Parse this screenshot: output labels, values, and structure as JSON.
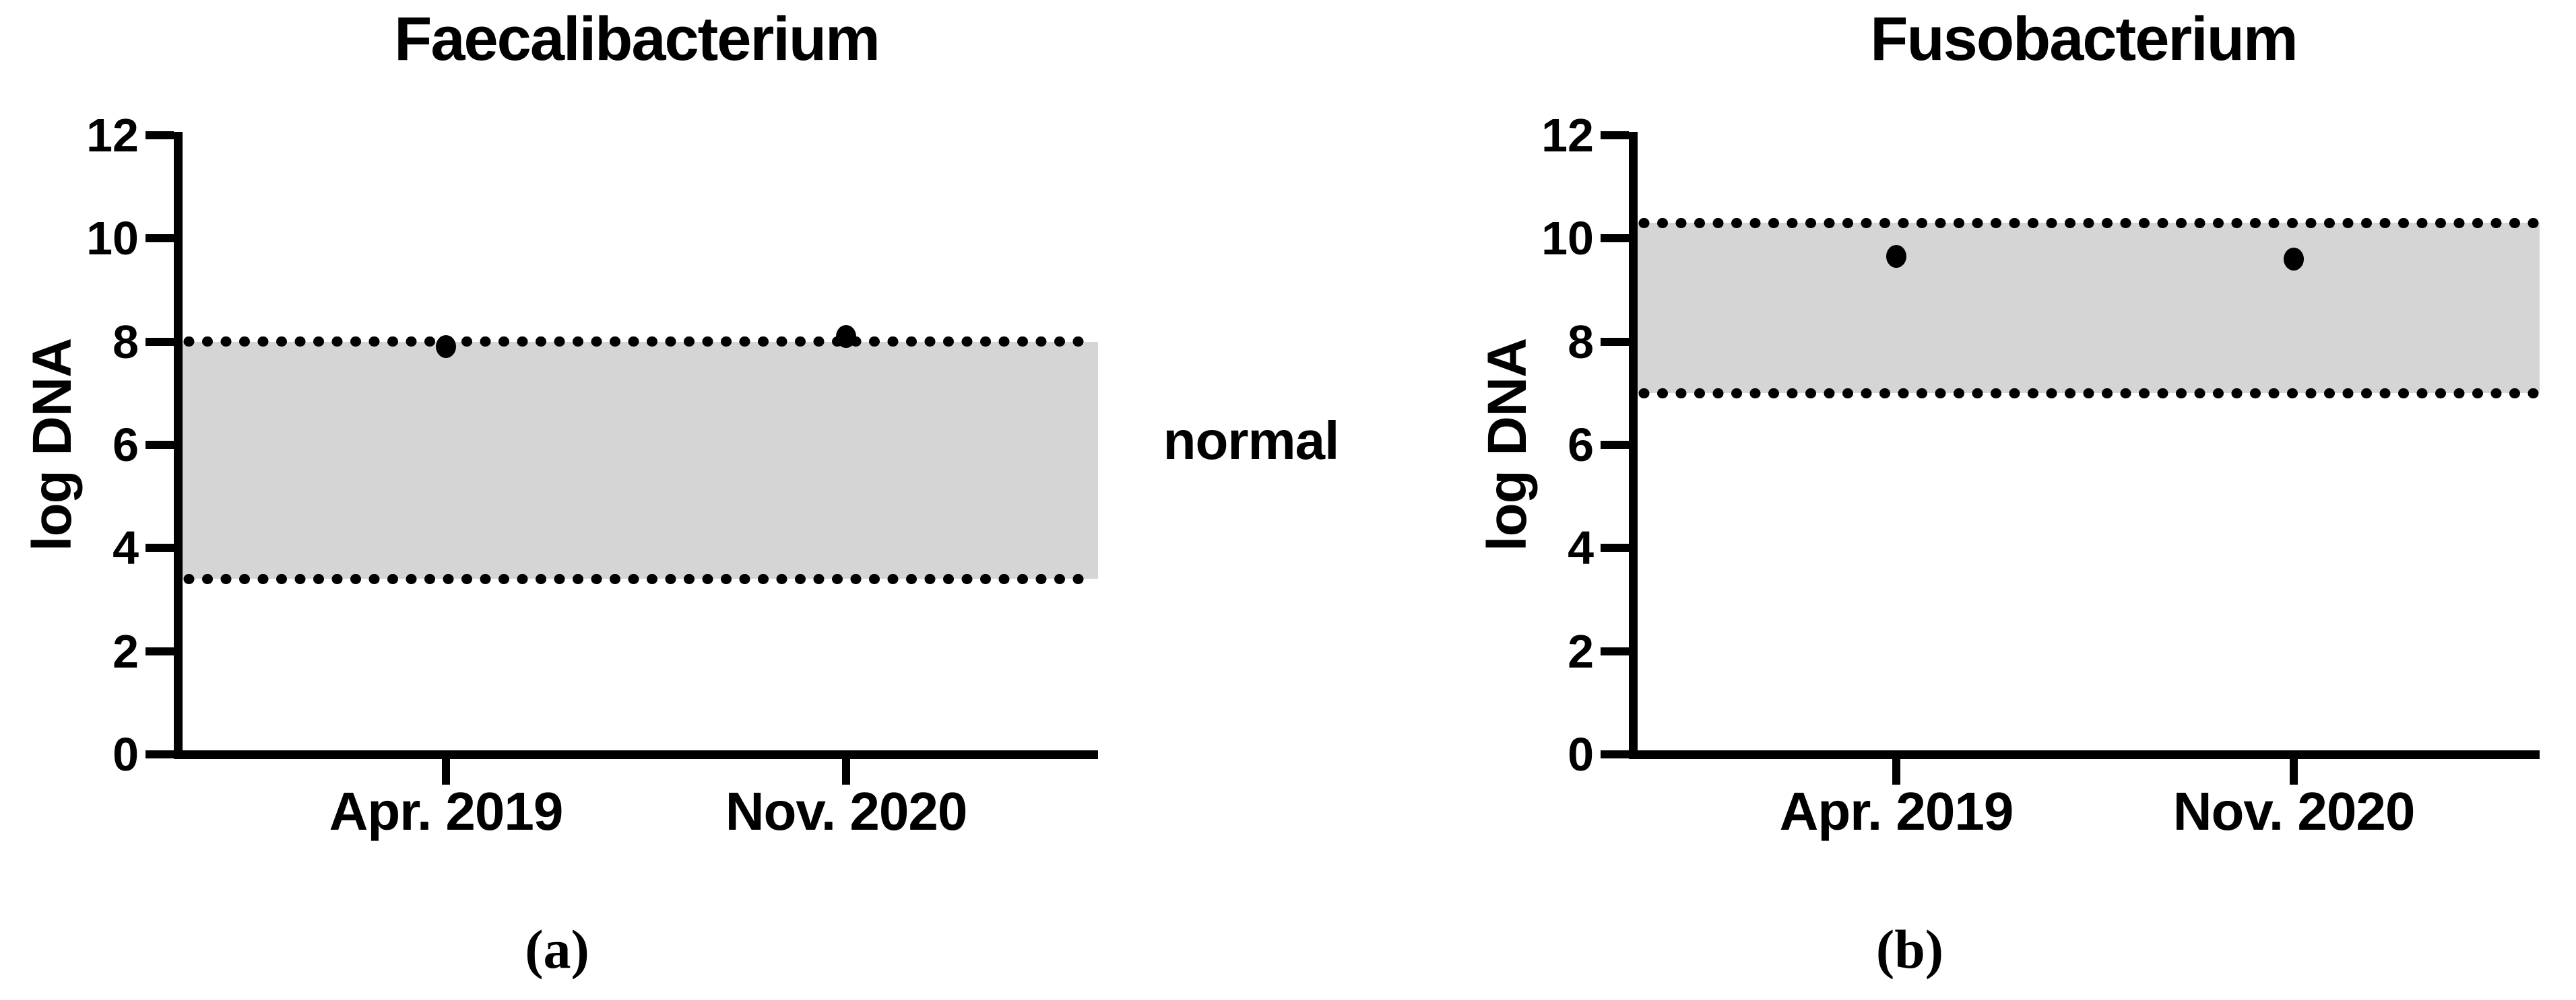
{
  "figure": {
    "background_color": "#ffffff",
    "ink_color": "#000000",
    "band_fill_color": "#d5d5d5",
    "normal_band_label": "normal"
  },
  "chart_data": [
    {
      "type": "scatter",
      "panel_caption": "(a)",
      "title": "Faecalibacterium",
      "ylabel": "log DNA",
      "xlabel": "",
      "categories": [
        "Apr. 2019",
        "Nov. 2020"
      ],
      "values": [
        7.9,
        8.1
      ],
      "ylim": [
        0,
        12
      ],
      "yticks": [
        12,
        10,
        8,
        6,
        4,
        2,
        0
      ],
      "grid": false,
      "legend_position": "none",
      "point_style": "filled-black-circle",
      "normal_range": {
        "low": 3.4,
        "high": 8.0,
        "style": "gray-band-with-dotted-borders",
        "label": "normal"
      }
    },
    {
      "type": "scatter",
      "panel_caption": "(b)",
      "title": "Fusobacterium",
      "ylabel": "log DNA",
      "xlabel": "",
      "categories": [
        "Apr. 2019",
        "Nov. 2020"
      ],
      "values": [
        9.65,
        9.6
      ],
      "ylim": [
        0,
        12
      ],
      "yticks": [
        12,
        10,
        8,
        6,
        4,
        2,
        0
      ],
      "grid": false,
      "legend_position": "none",
      "point_style": "filled-black-circle",
      "normal_range": {
        "low": 7.0,
        "high": 10.3,
        "style": "gray-band-with-dotted-borders"
      }
    }
  ]
}
